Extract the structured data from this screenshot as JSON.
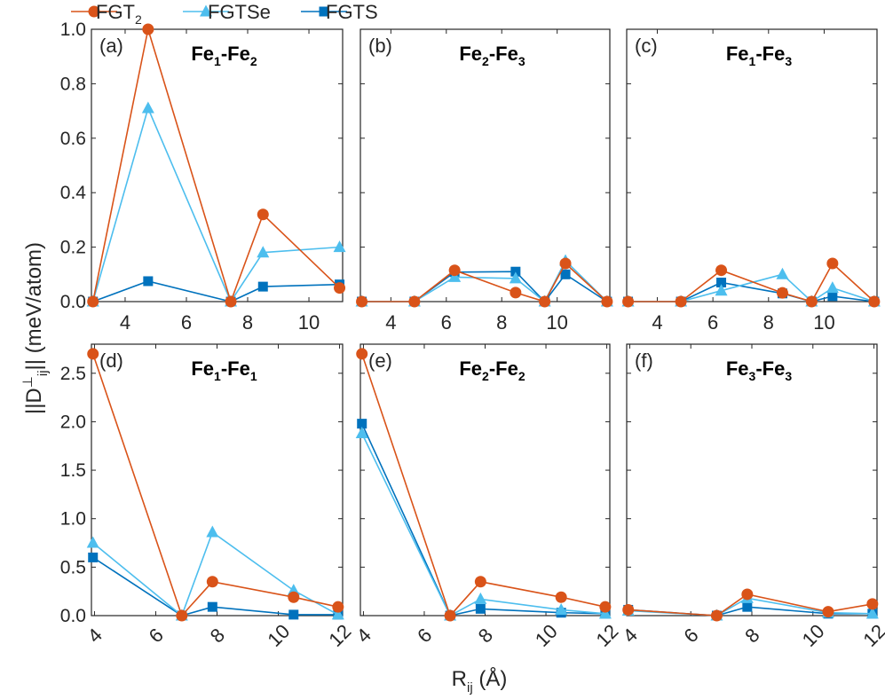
{
  "legend": [
    {
      "series": "FGT2",
      "base": "FGT",
      "sub": "2",
      "marker": "circle",
      "color": "#d95319"
    },
    {
      "series": "FGTSe",
      "base": "FGTSe",
      "sub": "",
      "marker": "triangle",
      "color": "#4dbeee"
    },
    {
      "series": "FGTS",
      "base": "FGTS",
      "sub": "",
      "marker": "square",
      "color": "#0072bd"
    }
  ],
  "ylabel": {
    "pre": "||D",
    "sup": "⊥",
    "sub": "ij",
    "post": "|| (meV/atom)"
  },
  "xlabel": {
    "base": "R",
    "sub": "ij",
    "post": " (Å)"
  },
  "chart_data": [
    {
      "type": "line",
      "panel": "(a)",
      "title": {
        "p1": "Fe",
        "s1": "1",
        "mid": "-Fe",
        "s2": "2"
      },
      "xlim": [
        2.9,
        11.1
      ],
      "ylim": [
        0,
        1.0
      ],
      "xticks": [
        4,
        6,
        8,
        10
      ],
      "yticks": [
        0,
        0.2,
        0.4,
        0.6,
        0.8,
        1.0
      ],
      "ytick_labels": [
        "0.0",
        "0.2",
        "0.4",
        "0.6",
        "0.8",
        "1.0"
      ],
      "show_xticklabels": true,
      "show_yticklabels": true,
      "series": [
        {
          "name": "FGT2",
          "x": [
            2.95,
            4.75,
            7.45,
            8.5,
            11.0
          ],
          "y": [
            0,
            1.0,
            0,
            0.32,
            0.05
          ]
        },
        {
          "name": "FGTSe",
          "x": [
            2.95,
            4.75,
            7.45,
            8.5,
            11.0
          ],
          "y": [
            0,
            0.71,
            0,
            0.18,
            0.2
          ]
        },
        {
          "name": "FGTS",
          "x": [
            2.95,
            4.75,
            7.45,
            8.5,
            11.0
          ],
          "y": [
            0,
            0.075,
            0,
            0.055,
            0.063
          ]
        }
      ]
    },
    {
      "type": "line",
      "panel": "(b)",
      "title": {
        "p1": "Fe",
        "s1": "2",
        "mid": "-Fe",
        "s2": "3"
      },
      "xlim": [
        2.9,
        11.9
      ],
      "ylim": [
        0,
        1.0
      ],
      "xticks": [
        4,
        6,
        8,
        10
      ],
      "yticks": [
        0,
        0.2,
        0.4,
        0.6,
        0.8,
        1.0
      ],
      "ytick_labels": [
        "0.0",
        "0.2",
        "0.4",
        "0.6",
        "0.8",
        "1.0"
      ],
      "show_xticklabels": true,
      "show_yticklabels": false,
      "series": [
        {
          "name": "FGT2",
          "x": [
            2.95,
            4.85,
            6.3,
            8.5,
            9.55,
            10.3,
            11.8
          ],
          "y": [
            0,
            0,
            0.115,
            0.033,
            0,
            0.14,
            0
          ]
        },
        {
          "name": "FGTSe",
          "x": [
            2.95,
            4.85,
            6.3,
            8.5,
            9.55,
            10.3,
            11.8
          ],
          "y": [
            0,
            0,
            0.09,
            0.085,
            0,
            0.15,
            0
          ]
        },
        {
          "name": "FGTS",
          "x": [
            2.95,
            4.85,
            6.3,
            8.5,
            9.55,
            10.3,
            11.8
          ],
          "y": [
            0,
            0,
            0.108,
            0.11,
            0,
            0.1,
            0
          ]
        }
      ]
    },
    {
      "type": "line",
      "panel": "(c)",
      "title": {
        "p1": "Fe",
        "s1": "1",
        "mid": "-Fe",
        "s2": "3"
      },
      "xlim": [
        2.9,
        11.9
      ],
      "ylim": [
        0,
        1.0
      ],
      "xticks": [
        4,
        6,
        8,
        10
      ],
      "yticks": [
        0,
        0.2,
        0.4,
        0.6,
        0.8,
        1.0
      ],
      "ytick_labels": [
        "0.0",
        "0.2",
        "0.4",
        "0.6",
        "0.8",
        "1.0"
      ],
      "show_xticklabels": true,
      "show_yticklabels": false,
      "series": [
        {
          "name": "FGT2",
          "x": [
            2.95,
            4.85,
            6.3,
            8.5,
            9.55,
            10.3,
            11.8
          ],
          "y": [
            0,
            0,
            0.115,
            0.032,
            0,
            0.14,
            0
          ]
        },
        {
          "name": "FGTSe",
          "x": [
            2.95,
            4.85,
            6.3,
            8.5,
            9.55,
            10.3,
            11.8
          ],
          "y": [
            0,
            0,
            0.04,
            0.1,
            0,
            0.05,
            0
          ]
        },
        {
          "name": "FGTS",
          "x": [
            2.95,
            4.85,
            6.3,
            8.5,
            9.55,
            10.3,
            11.8
          ],
          "y": [
            0,
            0,
            0.07,
            0.03,
            0,
            0.02,
            0
          ]
        }
      ]
    },
    {
      "type": "line",
      "panel": "(d)",
      "title": {
        "p1": "Fe",
        "s1": "1",
        "mid": "-Fe",
        "s2": "1"
      },
      "xlim": [
        3.9,
        12.1
      ],
      "ylim": [
        0,
        2.8
      ],
      "xticks": [
        4,
        6,
        8,
        10,
        12
      ],
      "yticks": [
        0,
        0.5,
        1.0,
        1.5,
        2.0,
        2.5
      ],
      "ytick_labels": [
        "0.0",
        "0.5",
        "1.0",
        "1.5",
        "2.0",
        "2.5"
      ],
      "show_xticklabels": true,
      "show_yticklabels": true,
      "series": [
        {
          "name": "FGT2",
          "x": [
            3.95,
            6.85,
            7.85,
            10.5,
            11.95
          ],
          "y": [
            2.7,
            0,
            0.35,
            0.19,
            0.09
          ]
        },
        {
          "name": "FGTSe",
          "x": [
            3.95,
            6.85,
            7.85,
            10.5,
            11.95
          ],
          "y": [
            0.75,
            0,
            0.86,
            0.26,
            0.01
          ]
        },
        {
          "name": "FGTS",
          "x": [
            3.95,
            6.85,
            7.85,
            10.5,
            11.95
          ],
          "y": [
            0.6,
            0,
            0.09,
            0.01,
            0.01
          ]
        }
      ]
    },
    {
      "type": "line",
      "panel": "(e)",
      "title": {
        "p1": "Fe",
        "s1": "2",
        "mid": "-Fe",
        "s2": "2"
      },
      "xlim": [
        3.9,
        12.1
      ],
      "ylim": [
        0,
        2.8
      ],
      "xticks": [
        4,
        6,
        8,
        10,
        12
      ],
      "yticks": [
        0,
        0.5,
        1.0,
        1.5,
        2.0,
        2.5
      ],
      "ytick_labels": [
        "0.0",
        "0.5",
        "1.0",
        "1.5",
        "2.0",
        "2.5"
      ],
      "show_xticklabels": true,
      "show_yticklabels": false,
      "series": [
        {
          "name": "FGT2",
          "x": [
            3.95,
            6.85,
            7.85,
            10.5,
            11.95
          ],
          "y": [
            2.7,
            0,
            0.35,
            0.19,
            0.09
          ]
        },
        {
          "name": "FGTSe",
          "x": [
            3.95,
            6.85,
            7.85,
            10.5,
            11.95
          ],
          "y": [
            1.88,
            0,
            0.17,
            0.06,
            0.02
          ]
        },
        {
          "name": "FGTS",
          "x": [
            3.95,
            6.85,
            7.85,
            10.5,
            11.95
          ],
          "y": [
            1.98,
            0,
            0.07,
            0.03,
            0.02
          ]
        }
      ]
    },
    {
      "type": "line",
      "panel": "(f)",
      "title": {
        "p1": "Fe",
        "s1": "3",
        "mid": "-Fe",
        "s2": "3"
      },
      "xlim": [
        3.9,
        12.1
      ],
      "ylim": [
        0,
        2.8
      ],
      "xticks": [
        4,
        6,
        8,
        10,
        12
      ],
      "yticks": [
        0,
        0.5,
        1.0,
        1.5,
        2.0,
        2.5
      ],
      "ytick_labels": [
        "0.0",
        "0.5",
        "1.0",
        "1.5",
        "2.0",
        "2.5"
      ],
      "show_xticklabels": true,
      "show_yticklabels": false,
      "series": [
        {
          "name": "FGT2",
          "x": [
            3.95,
            6.85,
            7.85,
            10.5,
            11.95
          ],
          "y": [
            0.06,
            0,
            0.22,
            0.04,
            0.12
          ]
        },
        {
          "name": "FGTSe",
          "x": [
            3.95,
            6.85,
            7.85,
            10.5,
            11.95
          ],
          "y": [
            0.05,
            0,
            0.18,
            0.03,
            0.02
          ]
        },
        {
          "name": "FGTS",
          "x": [
            3.95,
            6.85,
            7.85,
            10.5,
            11.95
          ],
          "y": [
            0.06,
            0,
            0.09,
            0.02,
            0.02
          ]
        }
      ]
    }
  ]
}
